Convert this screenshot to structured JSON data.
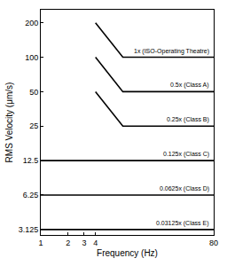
{
  "chart_data": {
    "type": "line",
    "x_label": "Frequency (Hz)",
    "y_label": "RMS Velocity (μm/s)",
    "log": true,
    "xlim": [
      1,
      80
    ],
    "ylim": [
      2.8,
      260
    ],
    "xticks": [
      1,
      2,
      3,
      4,
      80
    ],
    "yticks": [
      3.125,
      6.25,
      12.5,
      25,
      50,
      100,
      200
    ],
    "grid": false,
    "color": "#000000",
    "series": [
      {
        "name": "1x (ISO-Operating Theatre)",
        "x": [
          4,
          8,
          80
        ],
        "values": [
          200,
          100,
          100
        ]
      },
      {
        "name": "0.5x (Class A)",
        "x": [
          4,
          8,
          80
        ],
        "values": [
          100,
          50,
          50
        ]
      },
      {
        "name": "0.25x (Class B)",
        "x": [
          4,
          8,
          80
        ],
        "values": [
          50,
          25,
          25
        ]
      },
      {
        "name": "0.125x (Class C)",
        "x": [
          1,
          80
        ],
        "values": [
          12.5,
          12.5
        ]
      },
      {
        "name": "0.0625x (Class D)",
        "x": [
          1,
          80
        ],
        "values": [
          6.25,
          6.25
        ]
      },
      {
        "name": "0.03125x (Class E)",
        "x": [
          1,
          80
        ],
        "values": [
          3.125,
          3.125
        ]
      }
    ]
  }
}
